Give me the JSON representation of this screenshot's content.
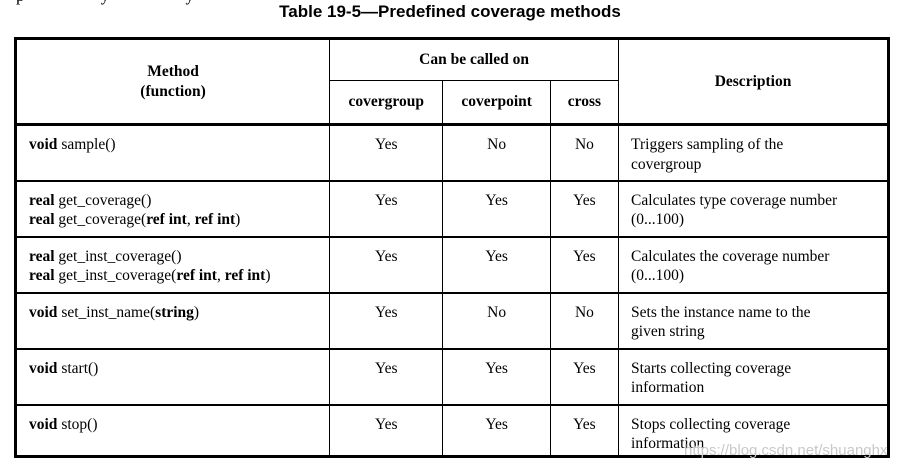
{
  "page": {
    "cutoff_fragment": "p y y",
    "watermark": "https://blog.csdn.net/shuanghx"
  },
  "title": "Table 19-5—Predefined coverage methods",
  "table": {
    "headers": {
      "method_line1": "Method",
      "method_line2": "(function)",
      "can_be_called_on": "Can be called on",
      "sub": [
        "covergroup",
        "coverpoint",
        "cross"
      ],
      "description": "Description"
    },
    "rows": [
      {
        "method": [
          [
            {
              "t": "void ",
              "b": true
            },
            {
              "t": "sample()",
              "b": false
            }
          ]
        ],
        "covergroup": "Yes",
        "coverpoint": "No",
        "cross": "No",
        "description": [
          "Triggers sampling of the",
          "covergroup"
        ]
      },
      {
        "method": [
          [
            {
              "t": "real ",
              "b": true
            },
            {
              "t": "get_coverage()",
              "b": false
            }
          ],
          [
            {
              "t": "real ",
              "b": true
            },
            {
              "t": "get_coverage(",
              "b": false
            },
            {
              "t": "ref int",
              "b": true
            },
            {
              "t": ", ",
              "b": false
            },
            {
              "t": "ref int",
              "b": true
            },
            {
              "t": ")",
              "b": false
            }
          ]
        ],
        "covergroup": "Yes",
        "coverpoint": "Yes",
        "cross": "Yes",
        "description": [
          "Calculates type coverage number",
          "(0...100)"
        ]
      },
      {
        "method": [
          [
            {
              "t": "real ",
              "b": true
            },
            {
              "t": "get_inst_coverage()",
              "b": false
            }
          ],
          [
            {
              "t": "real ",
              "b": true
            },
            {
              "t": "get_inst_coverage(",
              "b": false
            },
            {
              "t": "ref int",
              "b": true
            },
            {
              "t": ", ",
              "b": false
            },
            {
              "t": "ref int",
              "b": true
            },
            {
              "t": ")",
              "b": false
            }
          ]
        ],
        "covergroup": "Yes",
        "coverpoint": "Yes",
        "cross": "Yes",
        "description": [
          "Calculates the coverage number",
          "(0...100)"
        ]
      },
      {
        "method": [
          [
            {
              "t": "void ",
              "b": true
            },
            {
              "t": "set_inst_name(",
              "b": false
            },
            {
              "t": "string",
              "b": true
            },
            {
              "t": ")",
              "b": false
            }
          ]
        ],
        "covergroup": "Yes",
        "coverpoint": "No",
        "cross": "No",
        "description": [
          "Sets the instance name to the",
          "given string"
        ]
      },
      {
        "method": [
          [
            {
              "t": "void ",
              "b": true
            },
            {
              "t": "start()",
              "b": false
            }
          ]
        ],
        "covergroup": "Yes",
        "coverpoint": "Yes",
        "cross": "Yes",
        "description": [
          "Starts collecting coverage",
          "information"
        ]
      },
      {
        "method": [
          [
            {
              "t": "void ",
              "b": true
            },
            {
              "t": "stop()",
              "b": false
            }
          ]
        ],
        "covergroup": "Yes",
        "coverpoint": "Yes",
        "cross": "Yes",
        "description": [
          "Stops collecting coverage",
          "information"
        ]
      }
    ]
  }
}
